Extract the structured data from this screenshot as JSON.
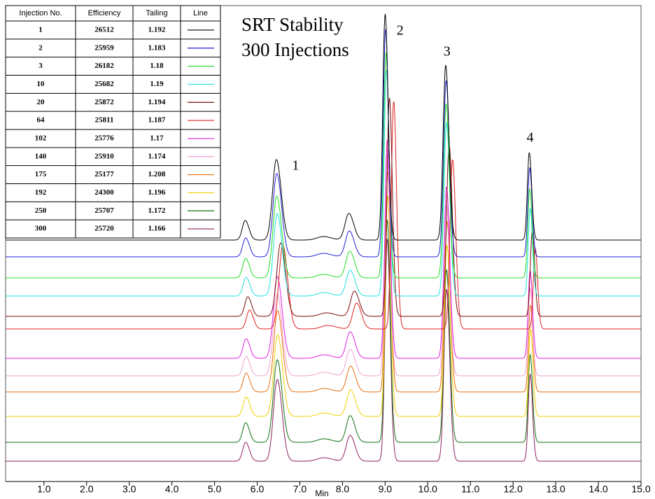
{
  "chart_data": {
    "type": "chromatogram",
    "title": [
      "SRT Stability",
      "300 Injections"
    ],
    "xlabel": "Min",
    "xlim": [
      0.1,
      15.0
    ],
    "xticks": [
      {
        "value": 1,
        "label": "1.0"
      },
      {
        "value": 2,
        "label": "2.0"
      },
      {
        "value": 3,
        "label": "3.0"
      },
      {
        "value": 4,
        "label": "4.0"
      },
      {
        "value": 5,
        "label": "5.0"
      },
      {
        "value": 6,
        "label": "6.0"
      },
      {
        "value": 7,
        "label": "7.0"
      },
      {
        "value": 8,
        "label": "8.0"
      },
      {
        "value": 9,
        "label": "9.0"
      },
      {
        "value": 10,
        "label": "10.0"
      },
      {
        "value": 11,
        "label": "11.0"
      },
      {
        "value": 12,
        "label": "12.0"
      },
      {
        "value": 13,
        "label": "13.0"
      },
      {
        "value": 14,
        "label": "14.0"
      },
      {
        "value": 15,
        "label": "15.0"
      }
    ],
    "annotations": [
      {
        "label": "1",
        "x": 6.9
      },
      {
        "label": "2",
        "x": 9.35
      },
      {
        "label": "3",
        "x": 10.45
      },
      {
        "label": "4",
        "x": 12.4
      }
    ],
    "series": [
      {
        "color": "#000000",
        "rt": [
          5.72,
          6.45,
          7.55,
          8.15,
          9.0,
          10.42,
          12.38
        ],
        "heights": [
          28,
          115,
          5,
          38,
          323,
          250,
          125
        ]
      },
      {
        "color": "#1f1fd0",
        "rt": [
          5.73,
          6.46,
          7.55,
          8.16,
          9.01,
          10.43,
          12.39
        ],
        "heights": [
          27,
          119,
          5,
          37,
          325,
          252,
          127
        ]
      },
      {
        "color": "#22dd22",
        "rt": [
          5.73,
          6.46,
          7.55,
          8.17,
          9.02,
          10.43,
          12.39
        ],
        "heights": [
          28,
          117,
          5,
          38,
          322,
          249,
          127
        ]
      },
      {
        "color": "#22e0e0",
        "rt": [
          5.74,
          6.47,
          7.56,
          8.18,
          9.03,
          10.44,
          12.4
        ],
        "heights": [
          27,
          118,
          5,
          37,
          323,
          248,
          125
        ]
      },
      {
        "color": "#7a0a0a",
        "rt": [
          5.78,
          6.55,
          7.62,
          8.28,
          9.1,
          10.5,
          12.45
        ],
        "heights": [
          28,
          105,
          5,
          36,
          312,
          244,
          122
        ]
      },
      {
        "color": "#e02020",
        "rt": [
          5.82,
          6.6,
          7.65,
          8.33,
          9.2,
          10.58,
          12.52
        ],
        "heights": [
          27,
          120,
          5,
          37,
          325,
          242,
          115
        ]
      },
      {
        "color": "#e020e0",
        "rt": [
          5.74,
          6.47,
          7.56,
          8.18,
          9.05,
          10.44,
          12.4
        ],
        "heights": [
          28,
          117,
          5,
          38,
          312,
          245,
          125
        ]
      },
      {
        "color": "#f0a0d0",
        "rt": [
          5.74,
          6.47,
          7.56,
          8.18,
          9.05,
          10.44,
          12.4
        ],
        "heights": [
          28,
          117,
          5,
          38,
          315,
          245,
          125
        ]
      },
      {
        "color": "#e87010",
        "rt": [
          5.74,
          6.48,
          7.57,
          8.19,
          9.06,
          10.45,
          12.41
        ],
        "heights": [
          27,
          116,
          5,
          37,
          314,
          244,
          124
        ]
      },
      {
        "color": "#f0d000",
        "rt": [
          5.74,
          6.48,
          7.57,
          8.19,
          9.06,
          10.45,
          12.41
        ],
        "heights": [
          28,
          117,
          5,
          38,
          316,
          245,
          125
        ]
      },
      {
        "color": "#107010",
        "rt": [
          5.73,
          6.47,
          7.56,
          8.18,
          9.05,
          10.44,
          12.4
        ],
        "heights": [
          28,
          118,
          5,
          38,
          318,
          247,
          125
        ]
      },
      {
        "color": "#902060",
        "rt": [
          5.73,
          6.47,
          7.56,
          8.18,
          9.05,
          10.44,
          12.4
        ],
        "heights": [
          27,
          117,
          5,
          37,
          318,
          246,
          124
        ]
      }
    ]
  },
  "table": {
    "header": [
      "Injection No.",
      "Efficiency",
      "Tailing",
      "Line"
    ],
    "rows": [
      [
        1,
        26512,
        1.192
      ],
      [
        2,
        25959,
        1.183
      ],
      [
        3,
        26182,
        1.18
      ],
      [
        10,
        25682,
        1.19
      ],
      [
        20,
        25872,
        1.194
      ],
      [
        64,
        25811,
        1.187
      ],
      [
        102,
        25776,
        1.17
      ],
      [
        140,
        25910,
        1.174
      ],
      [
        175,
        25177,
        1.208
      ],
      [
        192,
        24300,
        1.196
      ],
      [
        250,
        25707,
        1.172
      ],
      [
        300,
        25720,
        1.166
      ]
    ]
  }
}
